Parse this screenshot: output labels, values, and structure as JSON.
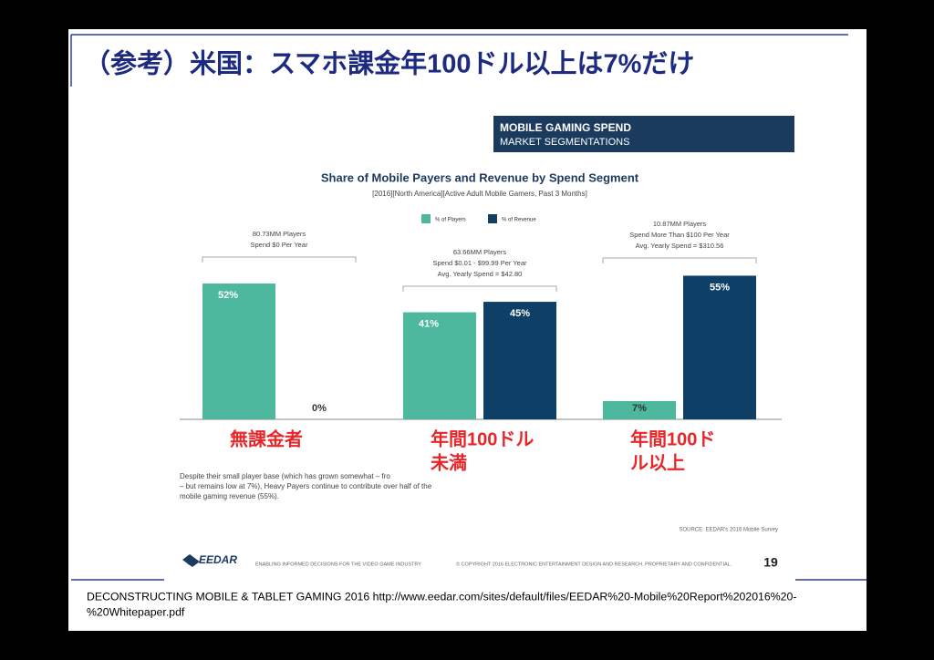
{
  "slide": {
    "title": "（参考）米国：スマホ課金年100ドル以上は7%だけ",
    "citation": [
      "DECONSTRUCTING MOBILE & TABLET GAMING 2016   http://www.eedar.com/sites/default/files/EEDAR%20-Mobile%20Report%202016%20-",
      "%20Whitepaper.pdf"
    ]
  },
  "report": {
    "header": [
      "MOBILE GAMING SPEND",
      "MARKET SEGMENTATIONS"
    ],
    "note": [
      "Despite their small player base (which has grown somewhat – fro",
      "– but remains low at 7%), Heavy Payers continue to contribute over half of the",
      "mobile gaming revenue (55%)."
    ],
    "source": "SOURCE: EEDAR's 2016 Mobile Survey",
    "footer": {
      "logo": "EEDAR",
      "tagline": "ENABLING INFORMED DECISIONS FOR THE VIDEO GAME INDUSTRY",
      "copyright": "© COPYRIGHT 2016 ELECTRONIC ENTERTAINMENT DESIGN AND RESEARCH. PROPRIETARY AND CONFIDENTIAL.",
      "page": "19"
    }
  },
  "chart_data": {
    "type": "bar",
    "title": "Share of Mobile Payers and Revenue by Spend Segment",
    "subtitle": "[2016][North America][Active Adult Mobile Gamers, Past 3 Months]",
    "categories": [
      [
        "無課金者"
      ],
      [
        "年間100ドル",
        "未満"
      ],
      [
        "年間100ド",
        "ル以上"
      ]
    ],
    "annotations": [
      [
        "80.73MM Players",
        "Spend $0 Per Year"
      ],
      [
        "63.66MM Players",
        "Spend $0.01 - $99.99 Per Year",
        "Avg. Yearly Spend = $42.80"
      ],
      [
        "10.87MM Players",
        "Spend More Than $100 Per Year",
        "Avg. Yearly Spend = $310.56"
      ]
    ],
    "series": [
      {
        "name": "% of Players",
        "color": "#4db89e",
        "values": [
          52,
          41,
          7
        ],
        "value_labels": [
          "52%",
          "41%",
          "7%"
        ]
      },
      {
        "name": "% of Revenue",
        "color": "#0e3f66",
        "values": [
          0,
          45,
          55
        ],
        "value_labels": [
          "0%",
          "45%",
          "55%"
        ]
      }
    ]
  }
}
